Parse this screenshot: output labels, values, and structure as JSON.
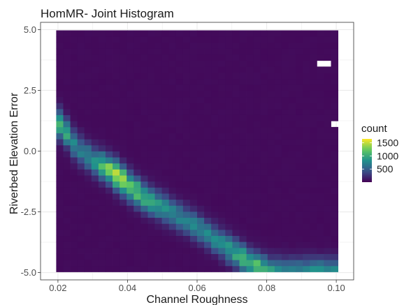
{
  "chart_data": {
    "type": "heatmap",
    "title": "HomMR- Joint Histogram",
    "xlabel": "Channel Roughness",
    "ylabel": "Riverbed Elevation Error",
    "xlim": [
      0.015,
      0.105
    ],
    "ylim": [
      -5.3,
      5.3
    ],
    "x_ticks": [
      0.02,
      0.04,
      0.06,
      0.08,
      0.1
    ],
    "x_tick_labels": [
      "0.02",
      "0.04",
      "0.06",
      "0.08",
      "0.10"
    ],
    "y_ticks": [
      5.0,
      2.5,
      0.0,
      -2.5,
      -5.0
    ],
    "y_tick_labels": [
      "5.0",
      "2.5",
      "0.0",
      "-2.5",
      "-5.0"
    ],
    "grid": true,
    "bins": {
      "x_range": [
        0.0195,
        0.1005
      ],
      "y_range": [
        -4.97,
        4.97
      ],
      "nx": 40,
      "ny": 40
    },
    "ridge": [
      {
        "x": 0.021,
        "y": 1.1,
        "count": 1050
      },
      {
        "x": 0.025,
        "y": 0.2,
        "count": 650
      },
      {
        "x": 0.03,
        "y": -0.35,
        "count": 700
      },
      {
        "x": 0.035,
        "y": -0.8,
        "count": 1300
      },
      {
        "x": 0.037,
        "y": -1.0,
        "count": 1600
      },
      {
        "x": 0.04,
        "y": -1.4,
        "count": 1250
      },
      {
        "x": 0.045,
        "y": -1.9,
        "count": 1000
      },
      {
        "x": 0.05,
        "y": -2.3,
        "count": 750
      },
      {
        "x": 0.055,
        "y": -2.7,
        "count": 650
      },
      {
        "x": 0.06,
        "y": -3.1,
        "count": 650
      },
      {
        "x": 0.065,
        "y": -3.6,
        "count": 700
      },
      {
        "x": 0.07,
        "y": -4.1,
        "count": 850
      },
      {
        "x": 0.075,
        "y": -4.6,
        "count": 1050
      },
      {
        "x": 0.078,
        "y": -4.85,
        "count": 1150
      },
      {
        "x": 0.082,
        "y": -4.95,
        "count": 700
      }
    ],
    "background_count": 50,
    "empty_bins": [
      {
        "x": 0.0965,
        "y": 5.05
      },
      {
        "x": 0.0965,
        "y": 3.7
      },
      {
        "x": 0.1005,
        "y": 1.1
      }
    ],
    "legend": {
      "title": "count",
      "position": "right",
      "range": [
        0,
        1650
      ],
      "ticks": [
        500,
        1000,
        1500
      ],
      "tick_labels": [
        "500",
        "1000",
        "1500"
      ]
    },
    "colors": {
      "panel_background": "#ffffff",
      "panel_border": "#333333",
      "grid": "#ebebeb",
      "colormap": [
        "#440154",
        "#3b528b",
        "#21918c",
        "#5ec962",
        "#fde725"
      ]
    }
  }
}
